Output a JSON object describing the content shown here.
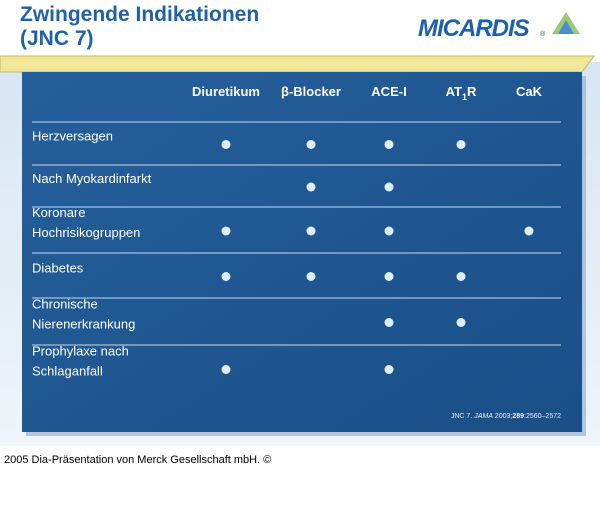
{
  "header": {
    "title_lines": [
      "Zwingende Indikationen",
      "(JNC 7)"
    ],
    "logo": "MICARDIS",
    "logo_mark": "®"
  },
  "table": {
    "columns": [
      "Diuretikum",
      "β-Blocker",
      "ACE-I",
      [
        "AT",
        "1",
        "R"
      ],
      "CaK"
    ],
    "rows": [
      {
        "label": [
          "Herzversagen"
        ],
        "marks": [
          true,
          true,
          true,
          true,
          false
        ]
      },
      {
        "label": [
          "Nach Myokardinfarkt"
        ],
        "marks": [
          false,
          true,
          true,
          false,
          false
        ]
      },
      {
        "label": [
          "Koronare",
          "Hochrisikogruppen"
        ],
        "marks": [
          true,
          true,
          true,
          false,
          true
        ]
      },
      {
        "label": [
          "Diabetes"
        ],
        "marks": [
          true,
          true,
          true,
          true,
          false
        ]
      },
      {
        "label": [
          "Chronische",
          "Nierenerkrankung"
        ],
        "marks": [
          false,
          false,
          true,
          true,
          false
        ]
      },
      {
        "label": [
          "Prophylaxe nach",
          "Schlaganfall"
        ],
        "marks": [
          true,
          false,
          true,
          false,
          false
        ]
      }
    ]
  },
  "citation": [
    "JNC 7. ",
    "JAMA",
    " 2003;",
    "289",
    ":2560–2572"
  ],
  "footer": "2005 Dia-Präsentation von Merck Gesellschaft mbH. ©"
}
